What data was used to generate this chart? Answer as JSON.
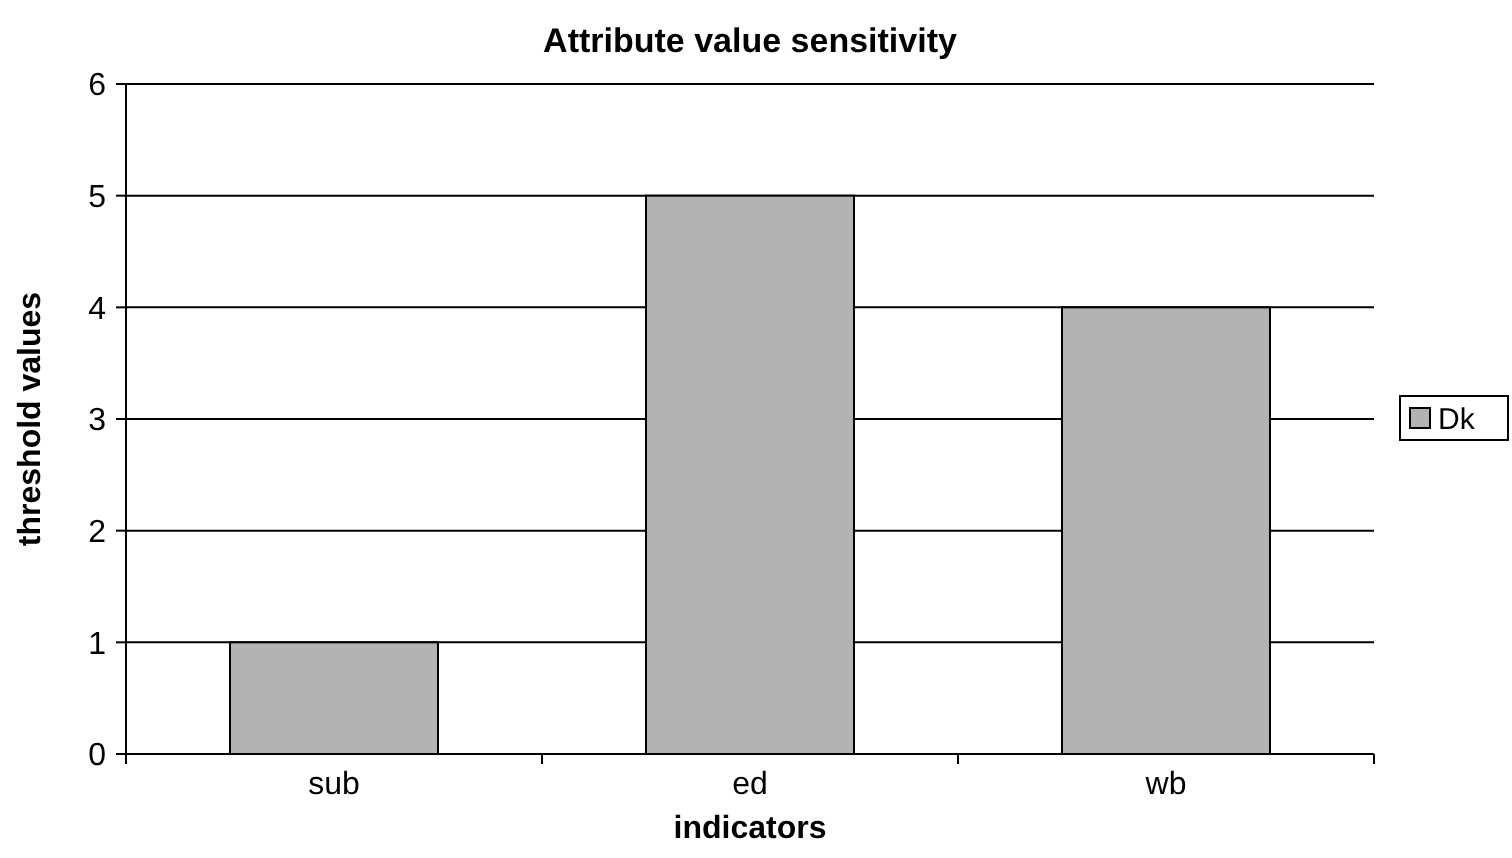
{
  "chart_data": {
    "type": "bar",
    "title": "Attribute value sensitivity",
    "xlabel": "indicators",
    "ylabel": "threshold values",
    "categories": [
      "sub",
      "ed",
      "wb"
    ],
    "series": [
      {
        "name": "Dk",
        "color": "#b2b2b2",
        "values": [
          1,
          5,
          4
        ]
      }
    ],
    "ylim": [
      0,
      6
    ],
    "yticks": [
      0,
      1,
      2,
      3,
      4,
      5,
      6
    ],
    "grid": "y",
    "legend": "right"
  }
}
